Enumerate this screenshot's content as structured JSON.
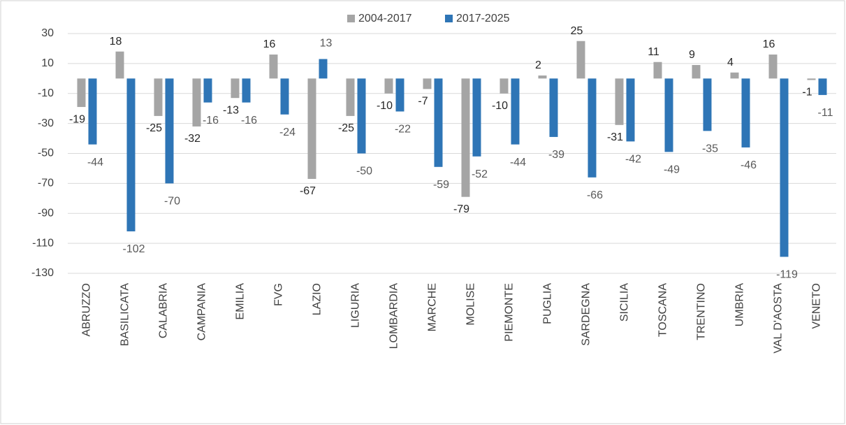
{
  "chart_data": {
    "type": "bar",
    "categories": [
      "ABRUZZO",
      "BASILICATA",
      "CALABRIA",
      "CAMPANIA",
      "EMILIA",
      "FVG",
      "LAZIO",
      "LIGURIA",
      "LOMBARDIA",
      "MARCHE",
      "MOLISE",
      "PIEMONTE",
      "PUGLIA",
      "SARDEGNA",
      "SICILIA",
      "TOSCANA",
      "TRENTINO",
      "UMBRIA",
      "VAL D'AOSTA",
      "VENETO"
    ],
    "series": [
      {
        "name": "2004-2017",
        "color": "#a5a5a5",
        "values": [
          -19,
          18,
          -25,
          -32,
          -13,
          16,
          -67,
          -25,
          -10,
          -7,
          -79,
          -10,
          2,
          25,
          -31,
          11,
          9,
          4,
          16,
          -1
        ]
      },
      {
        "name": "2017-2025",
        "color": "#2e75b6",
        "values": [
          -44,
          -102,
          -70,
          -16,
          -16,
          -24,
          13,
          -50,
          -22,
          -59,
          -52,
          -44,
          -39,
          -66,
          -42,
          -49,
          -35,
          -46,
          -119,
          -11
        ]
      }
    ],
    "ylim": [
      -130,
      30
    ],
    "yticks": [
      30,
      10,
      -10,
      -30,
      -50,
      -70,
      -90,
      -110,
      -130
    ],
    "grid": true,
    "legend": "top"
  }
}
